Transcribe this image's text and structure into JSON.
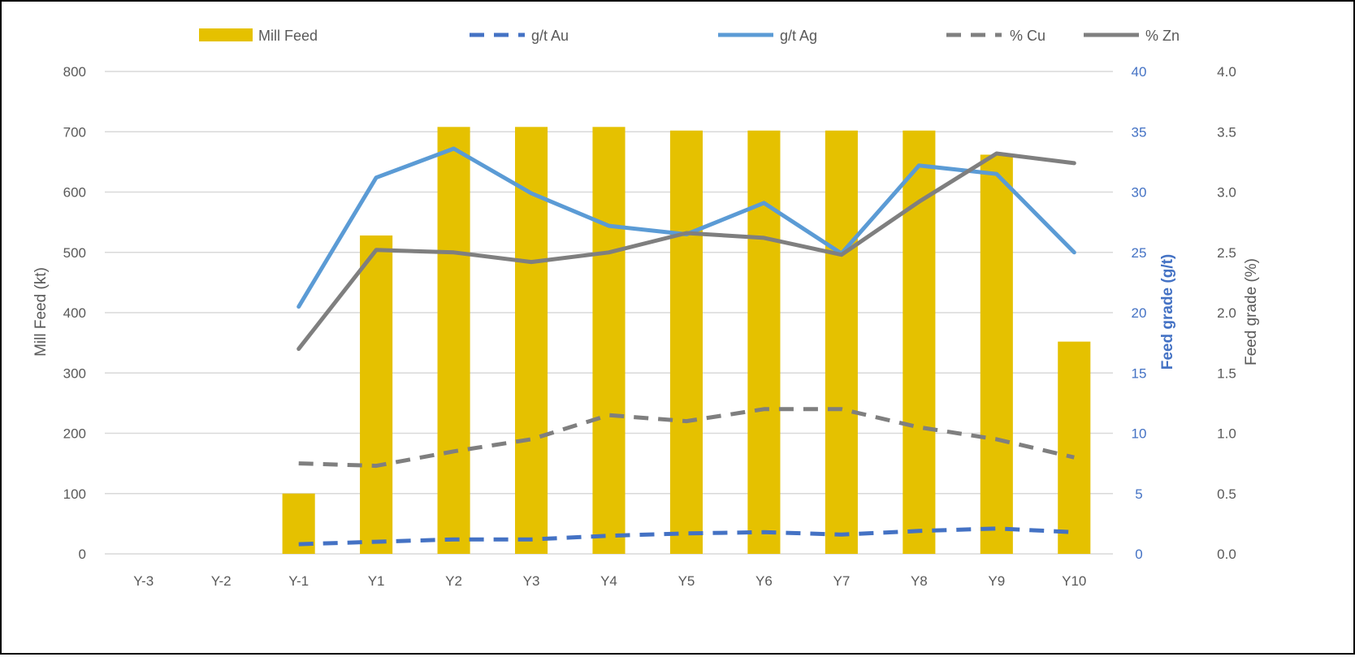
{
  "chart_data": {
    "type": "bar",
    "categories": [
      "Y-3",
      "Y-2",
      "Y-1",
      "Y1",
      "Y2",
      "Y3",
      "Y4",
      "Y5",
      "Y6",
      "Y7",
      "Y8",
      "Y9",
      "Y10"
    ],
    "series": [
      {
        "name": "Mill Feed",
        "type": "bar",
        "axis": "left",
        "color": "#E5C100",
        "values": [
          null,
          null,
          100,
          528,
          708,
          708,
          708,
          702,
          702,
          702,
          702,
          662,
          352
        ]
      },
      {
        "name": "g/t Au",
        "type": "line",
        "style": "dashed",
        "axis": "right1",
        "color": "#4472C4",
        "values": [
          null,
          null,
          0.8,
          1.0,
          1.2,
          1.2,
          1.5,
          1.7,
          1.8,
          1.6,
          1.9,
          2.1,
          1.8
        ]
      },
      {
        "name": "g/t Ag",
        "type": "line",
        "style": "solid",
        "axis": "right1",
        "color": "#5B9BD5",
        "values": [
          null,
          null,
          20.5,
          31.2,
          33.6,
          29.9,
          27.2,
          26.5,
          29.1,
          24.9,
          32.2,
          31.5,
          25.0
        ]
      },
      {
        "name": "% Cu",
        "type": "line",
        "style": "dashed",
        "axis": "right2",
        "color": "#7F7F7F",
        "values": [
          null,
          null,
          0.75,
          0.73,
          0.85,
          0.95,
          1.15,
          1.1,
          1.2,
          1.2,
          1.05,
          0.95,
          0.8
        ]
      },
      {
        "name": "% Zn",
        "type": "line",
        "style": "solid",
        "axis": "right2",
        "color": "#7F7F7F",
        "values": [
          null,
          null,
          1.7,
          2.52,
          2.5,
          2.42,
          2.5,
          2.66,
          2.62,
          2.48,
          2.92,
          3.32,
          3.24
        ]
      }
    ],
    "axes": {
      "left": {
        "label": "Mill Feed (kt)",
        "min": 0,
        "max": 800,
        "ticks": [
          "0",
          "100",
          "200",
          "300",
          "400",
          "500",
          "600",
          "700",
          "800"
        ]
      },
      "right1": {
        "label": "Feed grade (g/t)",
        "min": 0,
        "max": 40,
        "ticks": [
          "0",
          "5",
          "10",
          "15",
          "20",
          "25",
          "30",
          "35",
          "40"
        ],
        "color": "#4472C4"
      },
      "right2": {
        "label": "Feed grade (%)",
        "min": 0,
        "max": 4,
        "ticks": [
          "0.0",
          "0.5",
          "1.0",
          "1.5",
          "2.0",
          "2.5",
          "3.0",
          "3.5",
          "4.0"
        ]
      }
    },
    "grid": true,
    "legend_position": "top"
  }
}
